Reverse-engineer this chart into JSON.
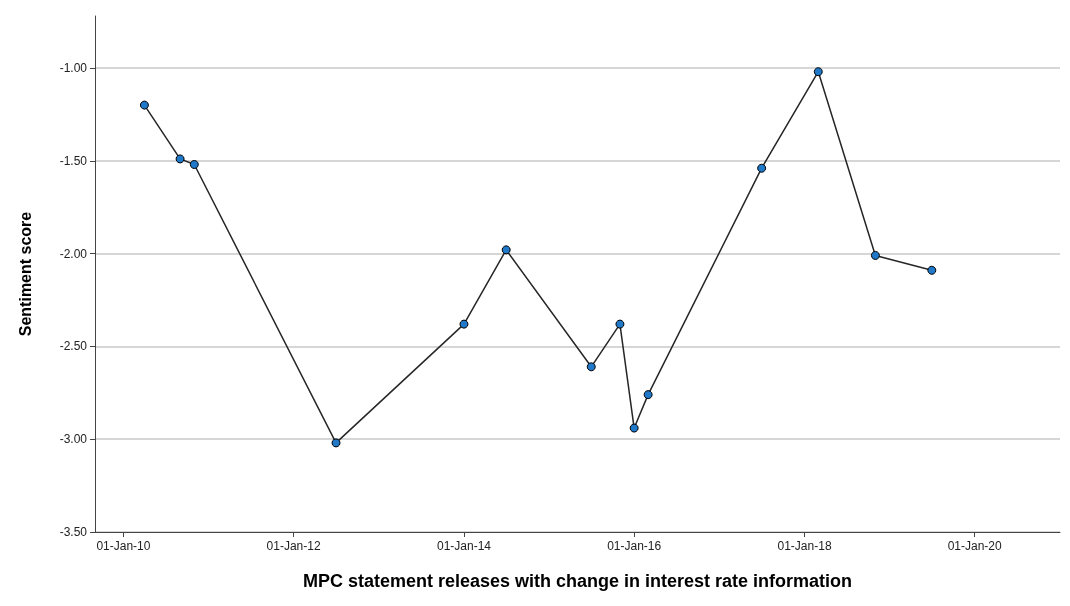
{
  "chart_data": {
    "type": "line",
    "xlabel": "MPC statement releases with change in interest rate information",
    "ylabel": "Sentiment score",
    "x": [
      "2010-04",
      "2010-09",
      "2010-11",
      "2012-07",
      "2014-01",
      "2014-07",
      "2015-07",
      "2015-11",
      "2016-01",
      "2016-03",
      "2017-07",
      "2018-03",
      "2018-11",
      "2019-07"
    ],
    "series": [
      {
        "color": "#1f78c8",
        "values": [
          -1.2,
          -1.49,
          -1.52,
          -3.02,
          -2.38,
          -1.98,
          -2.61,
          -2.38,
          -2.94,
          -2.76,
          -1.54,
          -1.02,
          -2.01,
          -2.09
        ]
      }
    ],
    "xlim": [
      "2009-09",
      "2021-01"
    ],
    "xticks": [
      {
        "value": "2010-01-01",
        "label": "01-Jan-10"
      },
      {
        "value": "2012-01-01",
        "label": "01-Jan-12"
      },
      {
        "value": "2014-01-01",
        "label": "01-Jan-14"
      },
      {
        "value": "2016-01-01",
        "label": "01-Jan-16"
      },
      {
        "value": "2018-01-01",
        "label": "01-Jan-18"
      },
      {
        "value": "2020-01-01",
        "label": "01-Jan-20"
      }
    ],
    "ylim": [
      -3.5,
      -0.72
    ],
    "yticks": [
      {
        "value": -3.5,
        "label": "-3.50"
      },
      {
        "value": -3,
        "label": "-3.00"
      },
      {
        "value": -2.5,
        "label": "-2.50"
      },
      {
        "value": -2,
        "label": "-2.00"
      },
      {
        "value": -1.5,
        "label": "-1.50"
      },
      {
        "value": -1,
        "label": "-1.00"
      }
    ],
    "grid": "y",
    "marker": "circle",
    "line_style": "solid"
  }
}
